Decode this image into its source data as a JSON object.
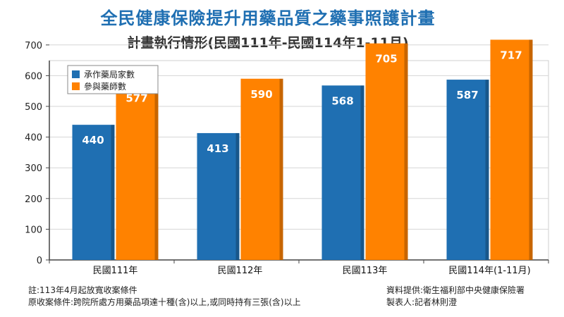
{
  "chart_data": {
    "type": "bar",
    "title": "全民健康保險提升用藥品質之藥事照護計畫",
    "subtitle": "計畫執行情形(民國111年-民國114年1-11月)",
    "categories": [
      "民國111年",
      "民國112年",
      "民國113年",
      "民國114年(1-11月)"
    ],
    "series": [
      {
        "name": "承作藥局家數",
        "values": [
          440,
          413,
          568,
          587
        ],
        "color": "#1f6fb2"
      },
      {
        "name": "參與藥師數",
        "values": [
          577,
          590,
          705,
          717
        ],
        "color": "#ff8200"
      }
    ],
    "ylim": [
      0,
      700
    ],
    "yticks": [
      0,
      100,
      200,
      300,
      400,
      500,
      600,
      700
    ],
    "grid": true,
    "legend_position": "top-left",
    "xlabel": "",
    "ylabel": ""
  },
  "notes": {
    "left_line1": "註:113年4月起放寬收案條件",
    "left_line2": "原收案條件:跨院所處方用藥品項達十種(含)以上,或同時持有三張(含)以上",
    "right_line1": "資料提供:衛生福利部中央健康保險署",
    "right_line2": "製表人:記者林則澄"
  }
}
